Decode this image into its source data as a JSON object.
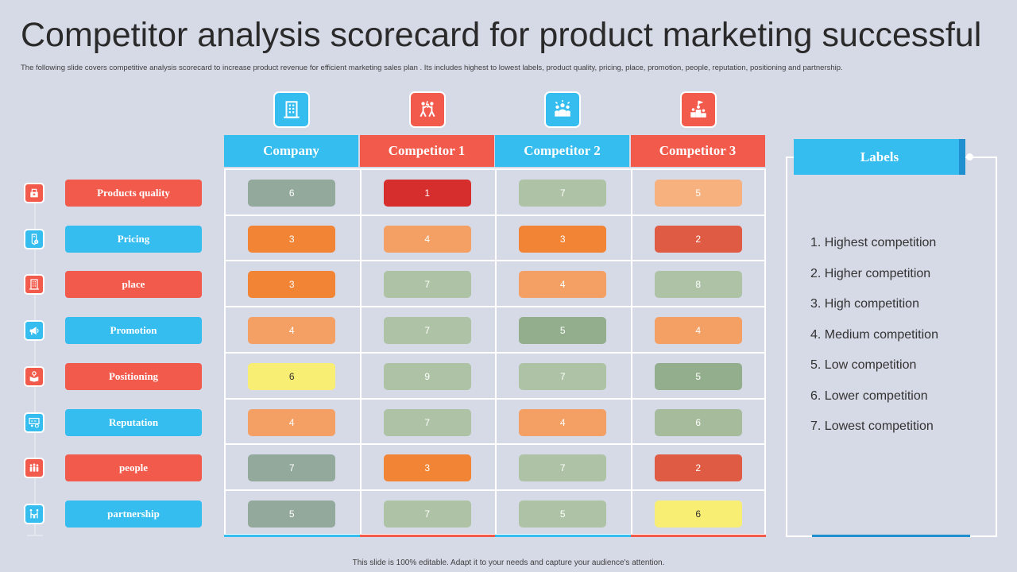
{
  "title": "Competitor analysis scorecard for product marketing successful",
  "subtitle": "The following slide covers competitive analysis scorecard to increase product revenue for efficient marketing sales plan . Its includes highest to lowest labels, product quality, pricing, place, promotion, people, reputation, positioning and partnership.",
  "footer": "This slide is 100% editable. Adapt it to your needs and capture your audience's attention.",
  "columns": [
    {
      "label": "Company",
      "color": "#35bdf0",
      "icon": "building-icon"
    },
    {
      "label": "Competitor 1",
      "color": "#f25a4c",
      "icon": "competing-people-icon"
    },
    {
      "label": "Competitor 2",
      "color": "#35bdf0",
      "icon": "team-icon"
    },
    {
      "label": "Competitor 3",
      "color": "#f25a4c",
      "icon": "podium-icon"
    }
  ],
  "rows": [
    {
      "label": "Products quality",
      "style": "red",
      "icon": "product-box-icon"
    },
    {
      "label": "Pricing",
      "style": "blue",
      "icon": "price-tag-icon"
    },
    {
      "label": "place",
      "style": "red",
      "icon": "building-icon"
    },
    {
      "label": "Promotion",
      "style": "blue",
      "icon": "megaphone-icon"
    },
    {
      "label": "Positioning",
      "style": "red",
      "icon": "location-box-icon"
    },
    {
      "label": "Reputation",
      "style": "blue",
      "icon": "presentation-icon"
    },
    {
      "label": "people",
      "style": "red",
      "icon": "people-group-icon"
    },
    {
      "label": "partnership",
      "style": "blue",
      "icon": "handshake-icon"
    }
  ],
  "scores": [
    [
      "6",
      "1",
      "7",
      "5"
    ],
    [
      "3",
      "4",
      "3",
      "2"
    ],
    [
      "3",
      "7",
      "4",
      "8"
    ],
    [
      "4",
      "7",
      "5",
      "4"
    ],
    [
      "6",
      "9",
      "7",
      "5"
    ],
    [
      "4",
      "7",
      "4",
      "6"
    ],
    [
      "7",
      "3",
      "7",
      "2"
    ],
    [
      "5",
      "7",
      "5",
      "6"
    ]
  ],
  "cell_colors": [
    [
      "#93a99c",
      "#d52e2c",
      "#aec3a5",
      "#f6b17f"
    ],
    [
      "#f28535",
      "#f4a064",
      "#f28535",
      "#e05b44"
    ],
    [
      "#f28535",
      "#aec3a5",
      "#f4a064",
      "#aec3a5"
    ],
    [
      "#f4a064",
      "#aec3a5",
      "#93ae8d",
      "#f4a064"
    ],
    [
      "#f8ee74",
      "#aec3a5",
      "#aec3a5",
      "#93ae8d"
    ],
    [
      "#f4a064",
      "#aec3a5",
      "#f4a064",
      "#a5bb9b"
    ],
    [
      "#93a99c",
      "#f28535",
      "#aec3a5",
      "#e05b44"
    ],
    [
      "#93a99c",
      "#aec3a5",
      "#aec3a5",
      "#f8ee74"
    ]
  ],
  "cell_text_colors": [
    [
      "#ffffff",
      "#ffffff",
      "#ffffff",
      "#ffffff"
    ],
    [
      "#ffffff",
      "#ffffff",
      "#ffffff",
      "#ffffff"
    ],
    [
      "#ffffff",
      "#ffffff",
      "#ffffff",
      "#ffffff"
    ],
    [
      "#ffffff",
      "#ffffff",
      "#ffffff",
      "#ffffff"
    ],
    [
      "#333333",
      "#ffffff",
      "#ffffff",
      "#ffffff"
    ],
    [
      "#ffffff",
      "#ffffff",
      "#ffffff",
      "#ffffff"
    ],
    [
      "#ffffff",
      "#ffffff",
      "#ffffff",
      "#ffffff"
    ],
    [
      "#ffffff",
      "#ffffff",
      "#ffffff",
      "#333333"
    ]
  ],
  "labels": {
    "heading": "Labels",
    "items": [
      "1. Highest competition",
      "2. Higher competition",
      "3. High competition",
      "4. Medium competition",
      "5. Low competition",
      "6. Lower competition",
      "7. Lowest competition"
    ]
  }
}
